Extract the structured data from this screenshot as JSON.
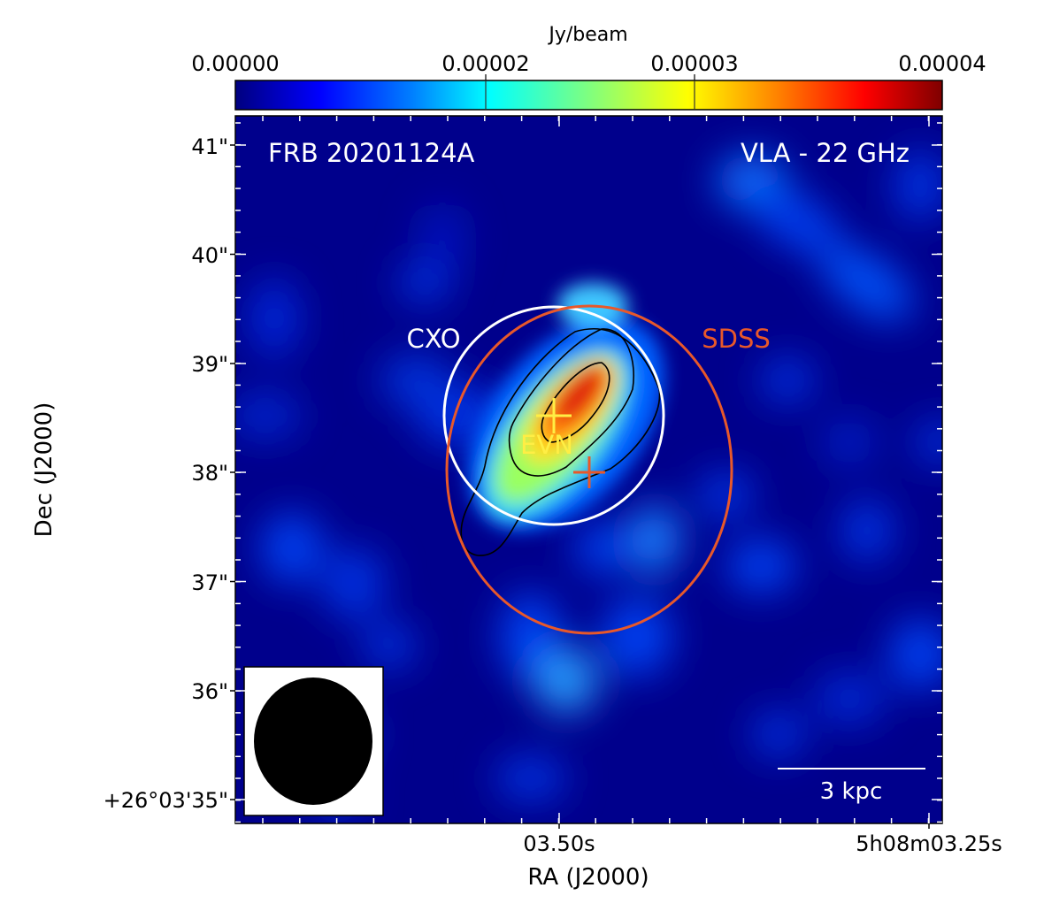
{
  "colorbar": {
    "label": "Jy/beam",
    "ticks": [
      {
        "label": "0.00000",
        "value": 0.0
      },
      {
        "label": "0.00002",
        "value": 2e-05
      },
      {
        "label": "0.00003",
        "value": 3e-05
      },
      {
        "label": "0.00004",
        "value": 4e-05
      }
    ],
    "colormap": [
      "#00007f",
      "#0000ff",
      "#007fff",
      "#00ffff",
      "#7fff7f",
      "#ffff00",
      "#ff7f00",
      "#ff0000",
      "#7f0000"
    ]
  },
  "image": {
    "source_label": "FRB 20201124A",
    "instrument_label": "VLA - 22 GHz",
    "xlabel": "RA (J2000)",
    "ylabel": "Dec (J2000)",
    "x_ticks": [
      "03.50s",
      "5h08m03.25s"
    ],
    "y_ticks": [
      "41\"",
      "40\"",
      "39\"",
      "38\"",
      "37\"",
      "36\"",
      "+26°03'35\""
    ],
    "scalebar_label": "3 kpc"
  },
  "annotations": {
    "cxo": {
      "label": "CXO",
      "color": "#ffffff"
    },
    "sdss": {
      "label": "SDSS",
      "color": "#e8582a"
    },
    "evn": {
      "label": "EVN",
      "color": "#ffee44"
    }
  },
  "beam": {
    "shape": "ellipse",
    "color": "#000000"
  }
}
